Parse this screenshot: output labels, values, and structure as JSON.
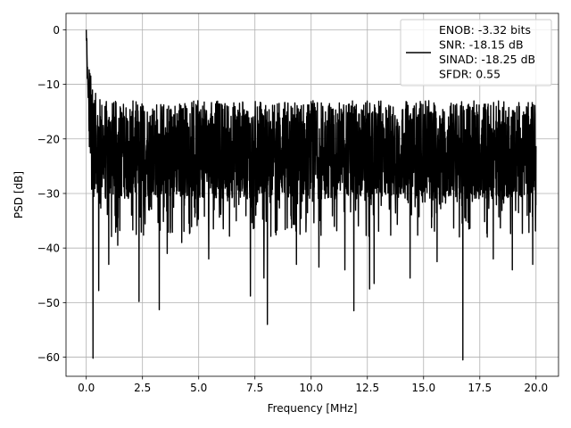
{
  "chart_data": {
    "type": "line",
    "title": "",
    "xlabel": "Frequency [MHz]",
    "ylabel": "PSD [dB]",
    "xlim": [
      -0.9,
      21.0
    ],
    "ylim": [
      -63.5,
      3.0
    ],
    "grid": true,
    "legend_position": "top-right",
    "x_ticks": [
      {
        "value": 0.0,
        "label": "0.0"
      },
      {
        "value": 2.5,
        "label": "2.5"
      },
      {
        "value": 5.0,
        "label": "5.0"
      },
      {
        "value": 7.5,
        "label": "7.5"
      },
      {
        "value": 10.0,
        "label": "10.0"
      },
      {
        "value": 12.5,
        "label": "12.5"
      },
      {
        "value": 15.0,
        "label": "15.0"
      },
      {
        "value": 17.5,
        "label": "17.5"
      },
      {
        "value": 20.0,
        "label": "20.0"
      }
    ],
    "y_ticks": [
      {
        "value": 0,
        "label": "0"
      },
      {
        "value": -10,
        "label": "−10"
      },
      {
        "value": -20,
        "label": "−20"
      },
      {
        "value": -30,
        "label": "−30"
      },
      {
        "value": -40,
        "label": "−40"
      },
      {
        "value": -50,
        "label": "−50"
      },
      {
        "value": -60,
        "label": "−60"
      }
    ],
    "legend_lines": [
      "ENOB: -3.32 bits",
      "SNR: -18.15 dB",
      "SINAD: -18.25 dB",
      "SFDR: 0.55"
    ],
    "series": [
      {
        "color": "#000000",
        "x": [
          0.0,
          0.02,
          0.04,
          0.06,
          0.08,
          0.1,
          0.13,
          0.16,
          0.2,
          0.25,
          0.3,
          0.4,
          0.5,
          0.7,
          0.9,
          1.2,
          1.5,
          1.8,
          2.0,
          2.4,
          2.8,
          3.2,
          3.6,
          4.0,
          4.5,
          5.0,
          5.5,
          6.0,
          6.5,
          7.0,
          7.5,
          8.0,
          8.5,
          9.0,
          9.5,
          10.0,
          10.5,
          11.0,
          11.5,
          12.0,
          12.5,
          13.0,
          13.5,
          14.0,
          14.5,
          15.0,
          15.5,
          16.0,
          16.5,
          17.0,
          17.5,
          18.0,
          18.5,
          19.0,
          19.5,
          20.0
        ],
        "y": [
          0.0,
          -3.0,
          -7.0,
          -9.0,
          -12.0,
          -11.0,
          -14.0,
          -15.5,
          -17.0,
          -18.5,
          -19.5,
          -20.5,
          -21.0,
          -21.5,
          -22.0,
          -22.0,
          -22.0,
          -22.0,
          -22.0,
          -22.0,
          -22.0,
          -22.0,
          -22.0,
          -22.0,
          -22.0,
          -22.0,
          -22.0,
          -22.0,
          -22.0,
          -22.0,
          -22.0,
          -22.0,
          -22.0,
          -22.0,
          -22.0,
          -22.0,
          -22.0,
          -22.0,
          -22.0,
          -22.0,
          -22.0,
          -22.0,
          -22.0,
          -22.0,
          -22.0,
          -22.0,
          -22.0,
          -22.0,
          -22.0,
          -22.0,
          -22.0,
          -22.0,
          -22.0,
          -22.0,
          -22.0,
          -22.0
        ]
      }
    ],
    "deep_dips": [
      {
        "x": 0.3,
        "y": -60.2
      },
      {
        "x": 0.55,
        "y": -47.8
      },
      {
        "x": 1.0,
        "y": -43.0
      },
      {
        "x": 1.4,
        "y": -39.5
      },
      {
        "x": 2.35,
        "y": -49.8
      },
      {
        "x": 3.25,
        "y": -51.3
      },
      {
        "x": 3.6,
        "y": -41.0
      },
      {
        "x": 4.25,
        "y": -39.0
      },
      {
        "x": 5.45,
        "y": -42.0
      },
      {
        "x": 7.3,
        "y": -48.8
      },
      {
        "x": 7.9,
        "y": -45.5
      },
      {
        "x": 8.05,
        "y": -54.0
      },
      {
        "x": 9.35,
        "y": -43.0
      },
      {
        "x": 10.35,
        "y": -43.5
      },
      {
        "x": 11.5,
        "y": -44.0
      },
      {
        "x": 11.9,
        "y": -51.5
      },
      {
        "x": 12.6,
        "y": -47.5
      },
      {
        "x": 12.8,
        "y": -46.5
      },
      {
        "x": 14.4,
        "y": -45.5
      },
      {
        "x": 15.6,
        "y": -42.5
      },
      {
        "x": 16.75,
        "y": -60.5
      },
      {
        "x": 18.1,
        "y": -42.0
      },
      {
        "x": 18.95,
        "y": -44.0
      },
      {
        "x": 19.85,
        "y": -43.0
      }
    ]
  }
}
